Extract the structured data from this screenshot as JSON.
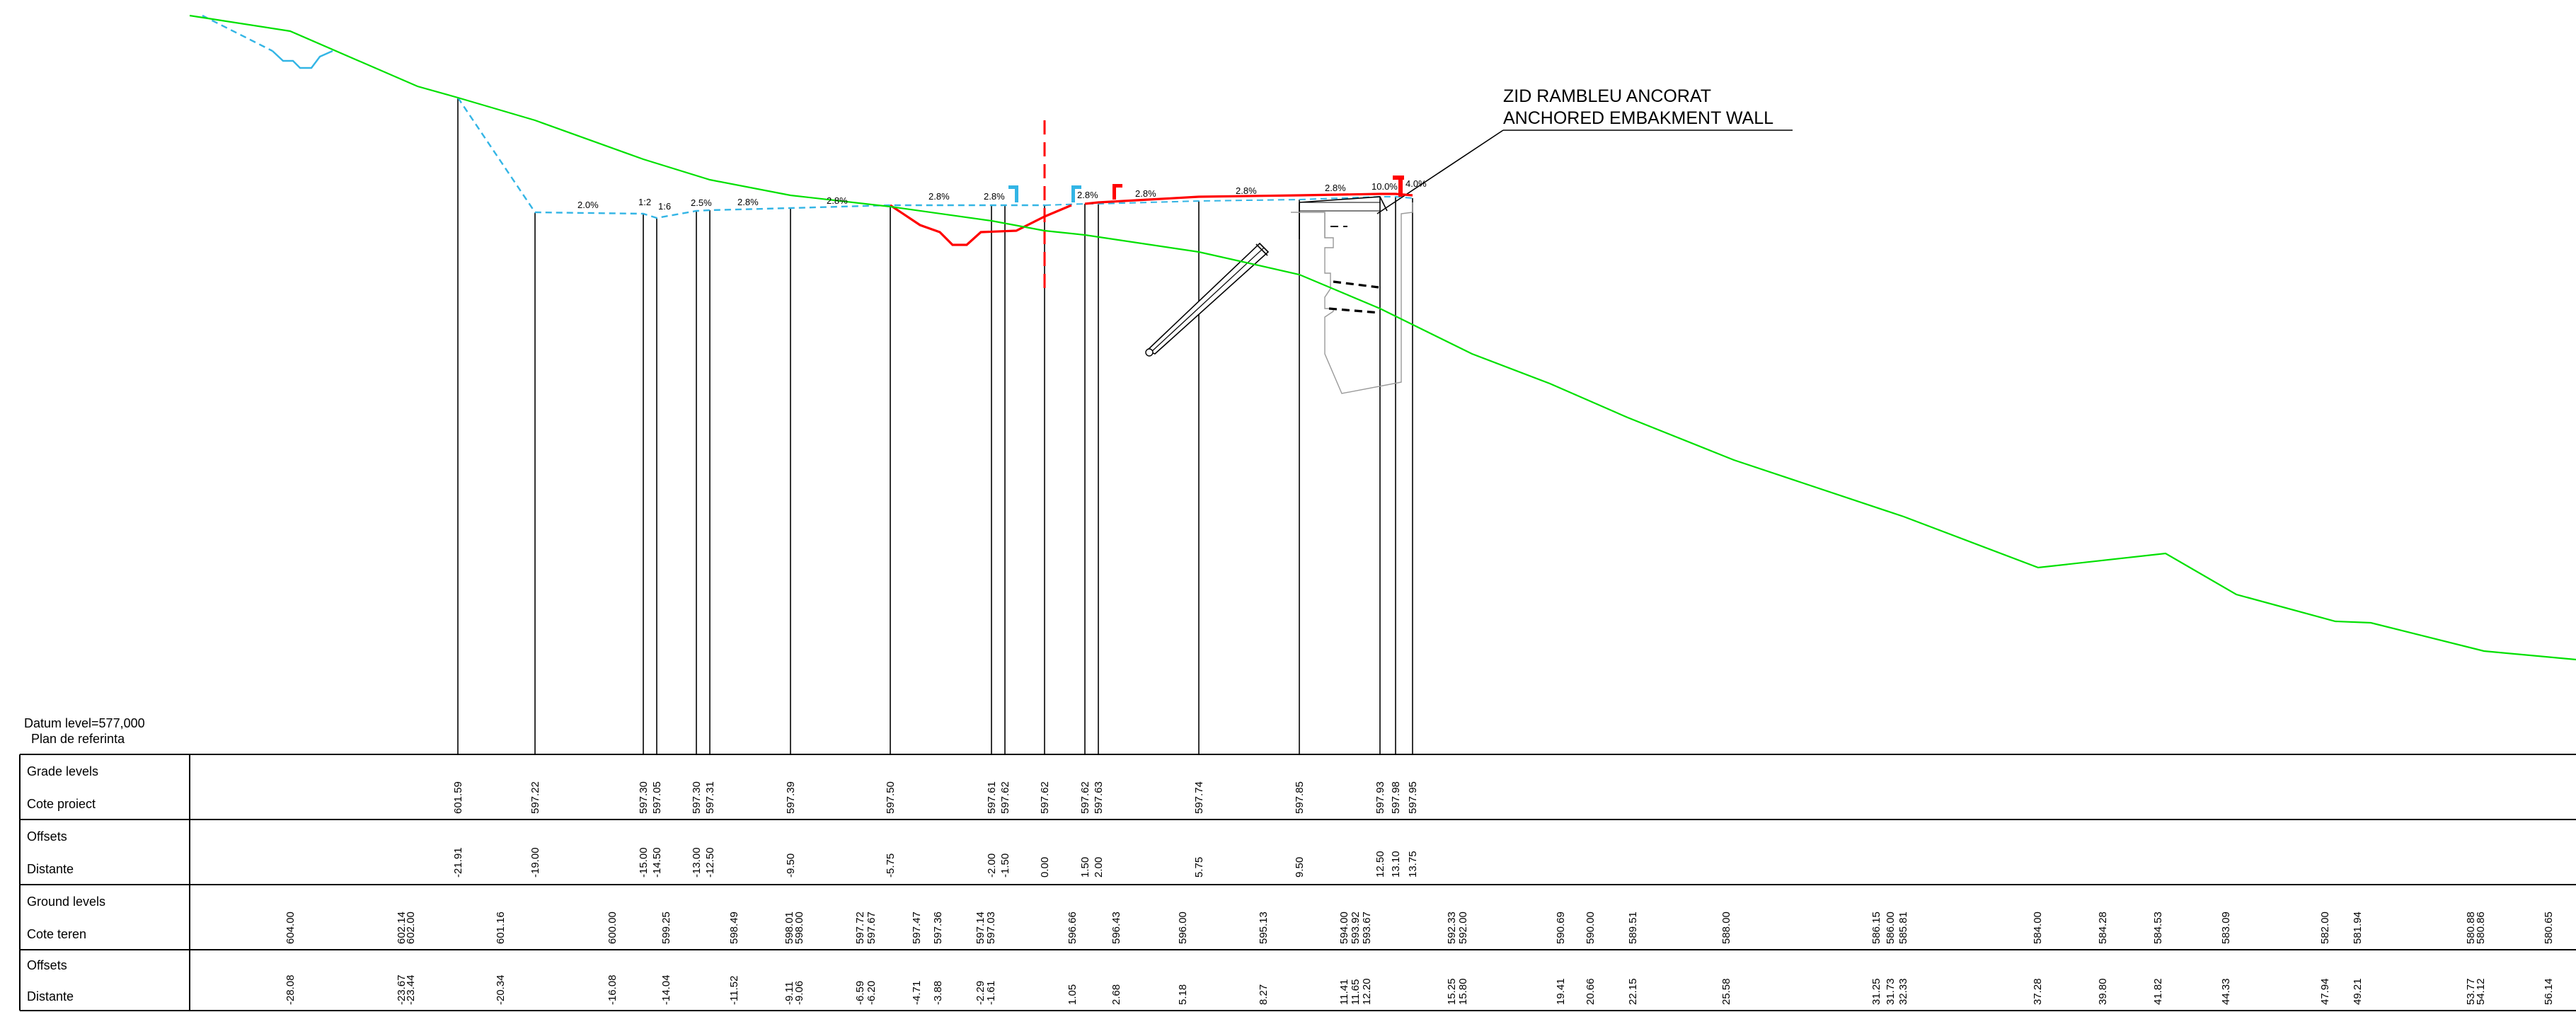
{
  "callout": {
    "line1": "ZID RAMBLEU ANCORAT",
    "line2": "ANCHORED EMBAKMENT WALL"
  },
  "datum": {
    "label": "Datum level=577,000",
    "sublabel": "Plan de referinta"
  },
  "table": {
    "rows": [
      {
        "title": "Grade levels",
        "subtitle": "Cote proiect"
      },
      {
        "title": "Offsets",
        "subtitle": "Distante"
      },
      {
        "title": "Ground levels",
        "subtitle": "Cote teren"
      },
      {
        "title": "Offsets",
        "subtitle": "Distante"
      }
    ]
  },
  "slope_labels": [
    "2.0%",
    "1:2",
    "1:6",
    "2.5%",
    "2.8%",
    "2.8%",
    "2.8%",
    "2.8%",
    "2.8%",
    "2.8%",
    "2.8%",
    "2.8%",
    "10.0%",
    "4.0%"
  ],
  "grade_values": [
    "601.59",
    "597.22",
    "597.30",
    "597.05",
    "597.30",
    "597.31",
    "597.39",
    "597.50",
    "597.61",
    "597.62",
    "597.62",
    "597.62",
    "597.63",
    "597.74",
    "597.85",
    "597.93",
    "597.98",
    "597.95"
  ],
  "grade_offsets": [
    "-21.91",
    "-19.00",
    "-15.00",
    "-14.50",
    "-13.00",
    "-12.50",
    "-9.50",
    "-5.75",
    "-2.00",
    "-1.50",
    "0.00",
    "1.50",
    "2.00",
    "5.75",
    "9.50",
    "12.50",
    "13.10",
    "13.75"
  ],
  "ground_values": [
    "604.00",
    "602.14",
    "602.00",
    "601.16",
    "600.00",
    "599.25",
    "598.49",
    "598.01",
    "598.00",
    "597.72",
    "597.67",
    "597.47",
    "597.36",
    "597.14",
    "597.03",
    "596.66",
    "596.43",
    "596.00",
    "595.13",
    "594.00",
    "593.92",
    "593.67",
    "592.33",
    "592.00",
    "590.69",
    "590.00",
    "589.51",
    "588.00",
    "586.15",
    "586.00",
    "585.81",
    "584.00",
    "584.28",
    "584.53",
    "583.09",
    "582.00",
    "581.94",
    "580.88",
    "580.86",
    "580.65"
  ],
  "ground_offsets": [
    "-28.08",
    "-23.67",
    "-23.44",
    "-20.34",
    "-16.08",
    "-14.04",
    "-11.52",
    "-9.11",
    "-9.06",
    "-6.59",
    "-6.20",
    "-4.71",
    "-3.88",
    "-2.29",
    "-1.61",
    "1.05",
    "2.68",
    "5.18",
    "8.27",
    "11.41",
    "11.65",
    "12.20",
    "15.25",
    "15.80",
    "19.41",
    "20.66",
    "22.15",
    "25.58",
    "31.25",
    "31.73",
    "32.33",
    "37.28",
    "39.80",
    "41.82",
    "44.33",
    "47.94",
    "49.21",
    "53.77",
    "54.12",
    "56.14"
  ]
}
